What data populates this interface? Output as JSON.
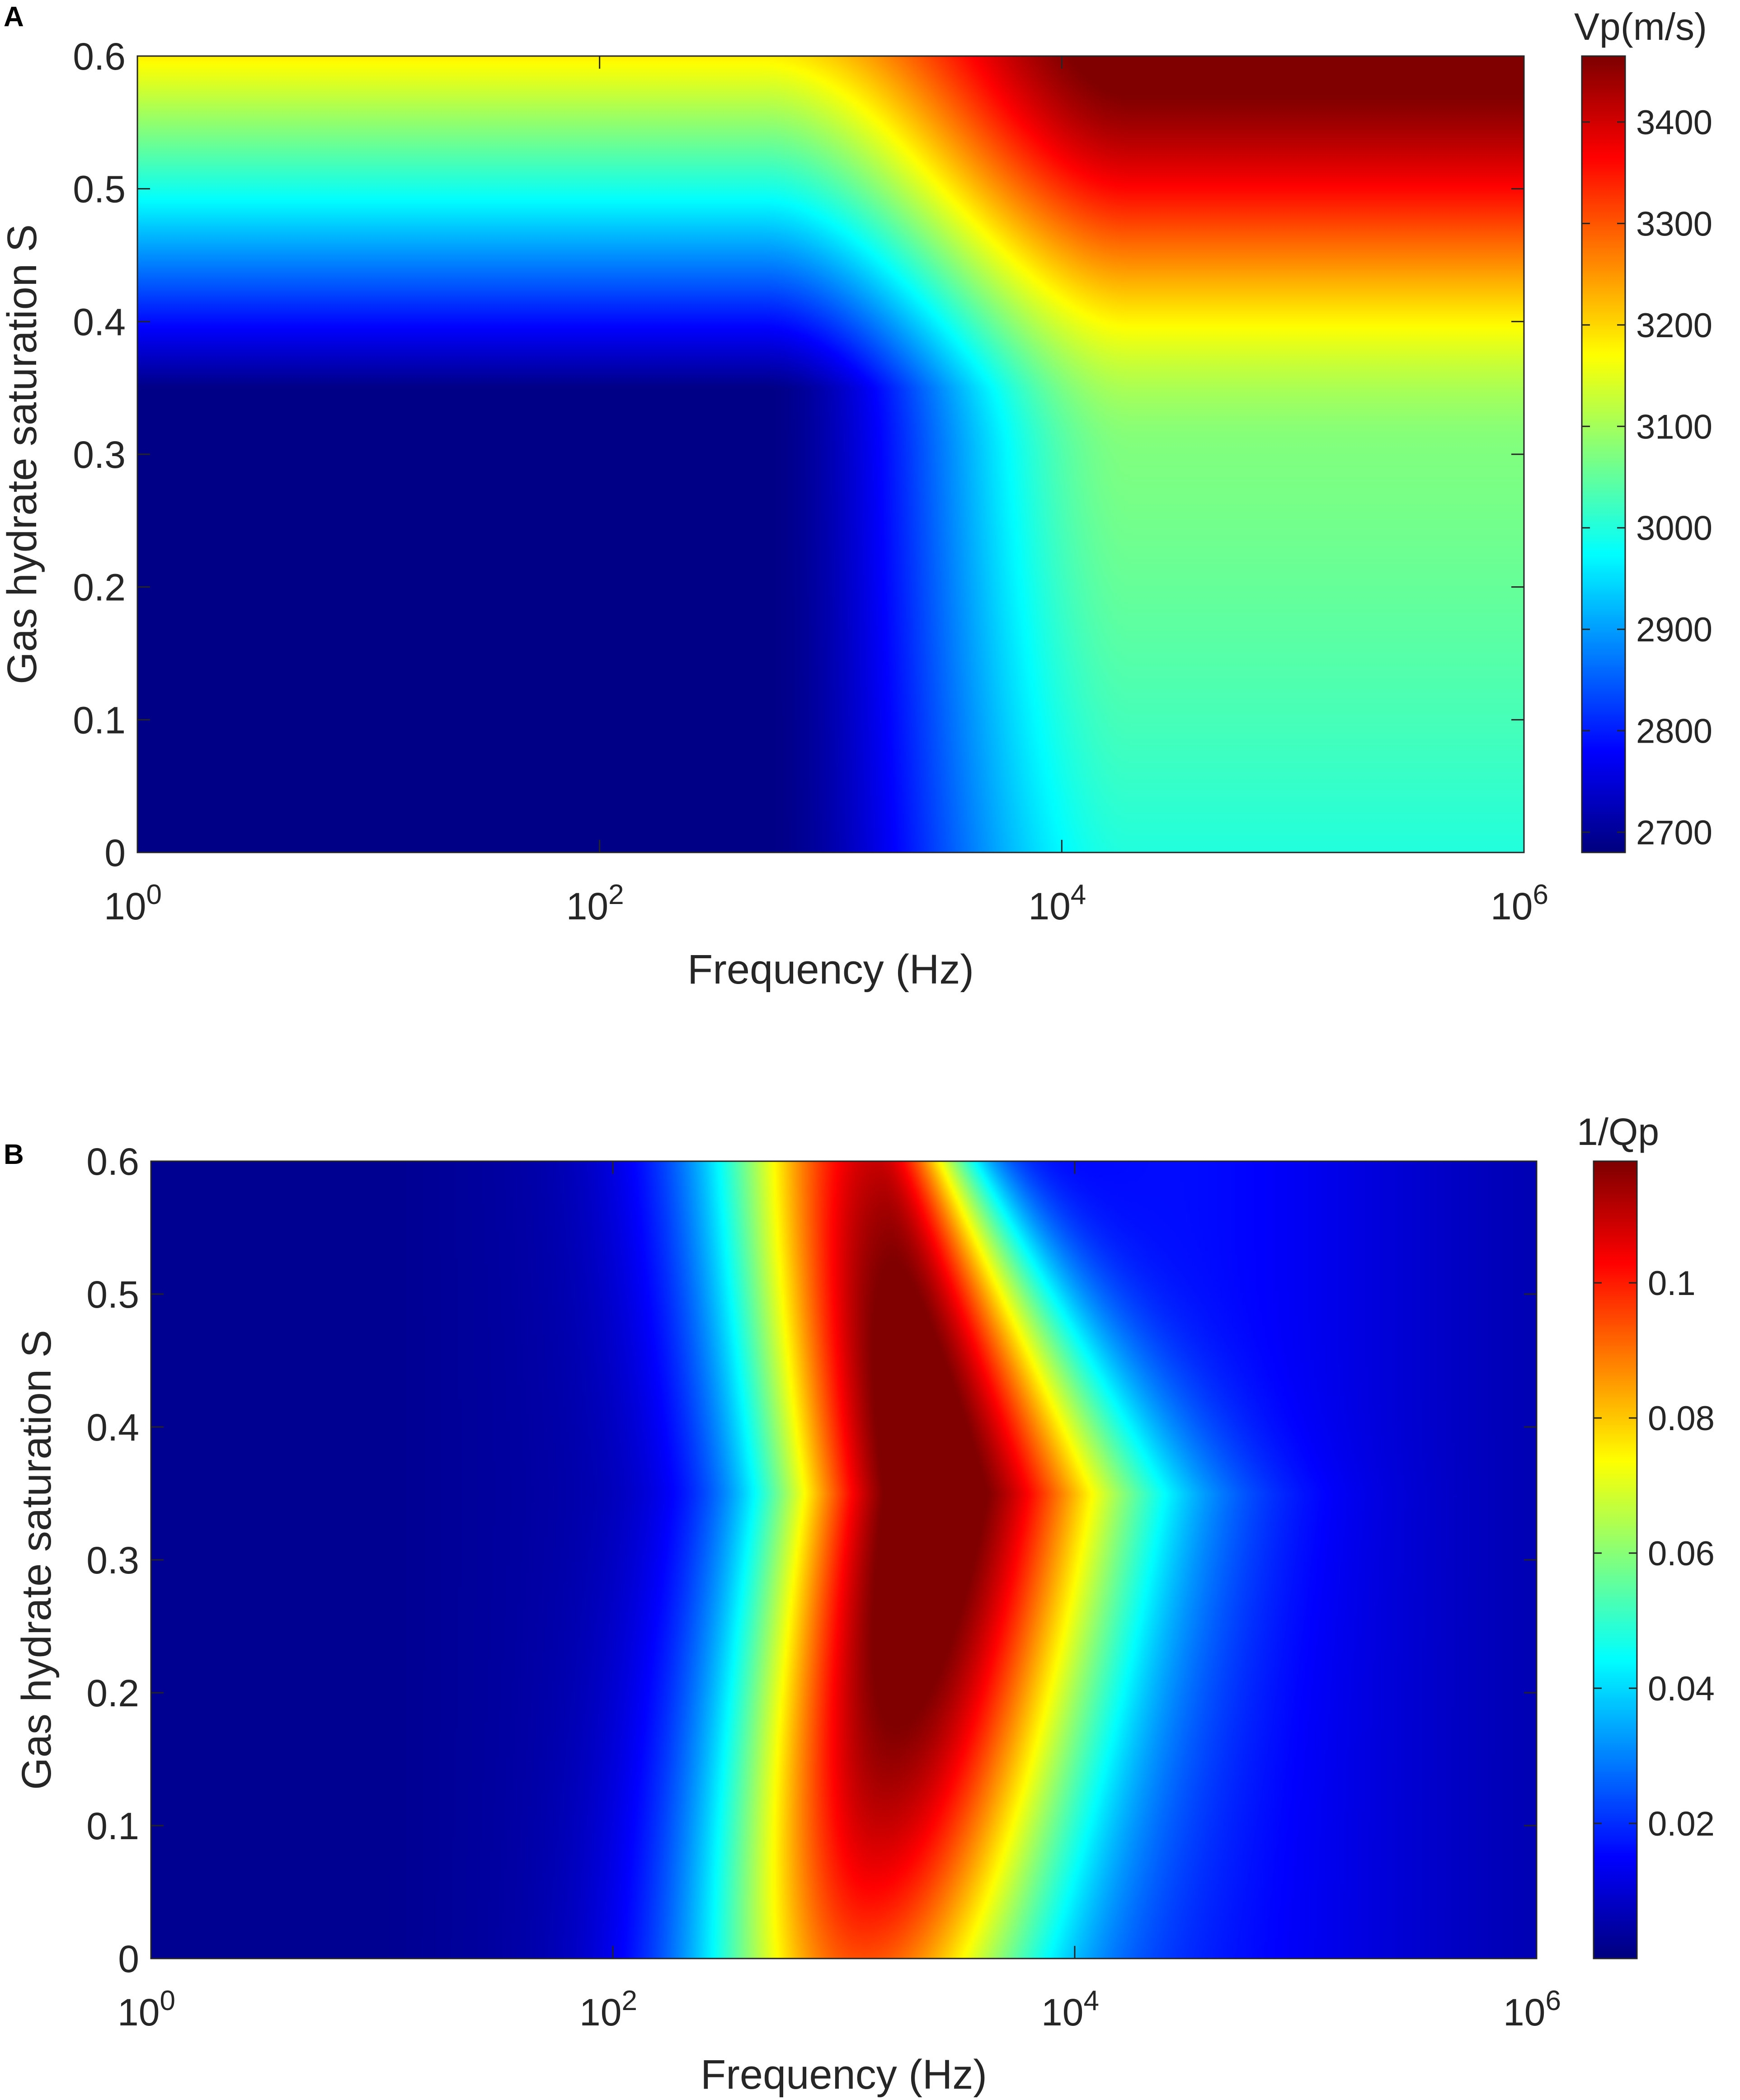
{
  "chart_data": [
    {
      "panel": "A",
      "type": "heatmap",
      "xlabel": "Frequency (Hz)",
      "ylabel": "Gas hydrate saturation S",
      "x_scale": "log",
      "xlim": [
        1,
        1000000
      ],
      "ylim": [
        0,
        0.6
      ],
      "x_ticks": [
        {
          "value": 1,
          "base": "10",
          "exp": "0"
        },
        {
          "value": 100,
          "base": "10",
          "exp": "2"
        },
        {
          "value": 10000,
          "base": "10",
          "exp": "4"
        },
        {
          "value": 1000000,
          "base": "10",
          "exp": "6"
        }
      ],
      "y_ticks": [
        {
          "value": 0,
          "label": "0"
        },
        {
          "value": 0.1,
          "label": "0.1"
        },
        {
          "value": 0.2,
          "label": "0.2"
        },
        {
          "value": 0.3,
          "label": "0.3"
        },
        {
          "value": 0.4,
          "label": "0.4"
        },
        {
          "value": 0.5,
          "label": "0.5"
        },
        {
          "value": 0.6,
          "label": "0.6"
        }
      ],
      "colorbar": {
        "title": "Vp(m/s)",
        "colormap": "jet",
        "range": [
          2680,
          3465
        ],
        "ticks": [
          {
            "value": 2700,
            "label": "2700"
          },
          {
            "value": 2800,
            "label": "2800"
          },
          {
            "value": 2900,
            "label": "2900"
          },
          {
            "value": 3000,
            "label": "3000"
          },
          {
            "value": 3100,
            "label": "3100"
          },
          {
            "value": 3200,
            "label": "3200"
          },
          {
            "value": 3300,
            "label": "3300"
          },
          {
            "value": 3400,
            "label": "3400"
          }
        ]
      },
      "field_description_points": {
        "low_freq_low_S_value": 2685,
        "high_freq_low_S_value": 3080,
        "high_freq_high_S_value": 3465,
        "low_freq_S_0.6_value": 3180
      }
    },
    {
      "panel": "B",
      "type": "heatmap",
      "xlabel": "Frequency (Hz)",
      "ylabel": "Gas hydrate saturation S",
      "x_scale": "log",
      "xlim": [
        1,
        1000000
      ],
      "ylim": [
        0,
        0.6
      ],
      "x_ticks": [
        {
          "value": 1,
          "base": "10",
          "exp": "0"
        },
        {
          "value": 100,
          "base": "10",
          "exp": "2"
        },
        {
          "value": 10000,
          "base": "10",
          "exp": "4"
        },
        {
          "value": 1000000,
          "base": "10",
          "exp": "6"
        }
      ],
      "y_ticks": [
        {
          "value": 0,
          "label": "0"
        },
        {
          "value": 0.1,
          "label": "0.1"
        },
        {
          "value": 0.2,
          "label": "0.2"
        },
        {
          "value": 0.3,
          "label": "0.3"
        },
        {
          "value": 0.4,
          "label": "0.4"
        },
        {
          "value": 0.5,
          "label": "0.5"
        },
        {
          "value": 0.6,
          "label": "0.6"
        }
      ],
      "colorbar": {
        "title": "1/Qp",
        "colormap": "jet",
        "range": [
          0.0,
          0.118
        ],
        "ticks": [
          {
            "value": 0.02,
            "label": "0.02"
          },
          {
            "value": 0.04,
            "label": "0.04"
          },
          {
            "value": 0.06,
            "label": "0.06"
          },
          {
            "value": 0.08,
            "label": "0.08"
          },
          {
            "value": 0.1,
            "label": "0.1"
          }
        ]
      },
      "field_description_points": {
        "peak_frequency_hz": 2500,
        "peak_saturation": 0.35,
        "peak_value": 0.117,
        "edge_value": 0.003
      }
    }
  ],
  "panels": {
    "a": {
      "letter": "A"
    },
    "b": {
      "letter": "B"
    }
  }
}
